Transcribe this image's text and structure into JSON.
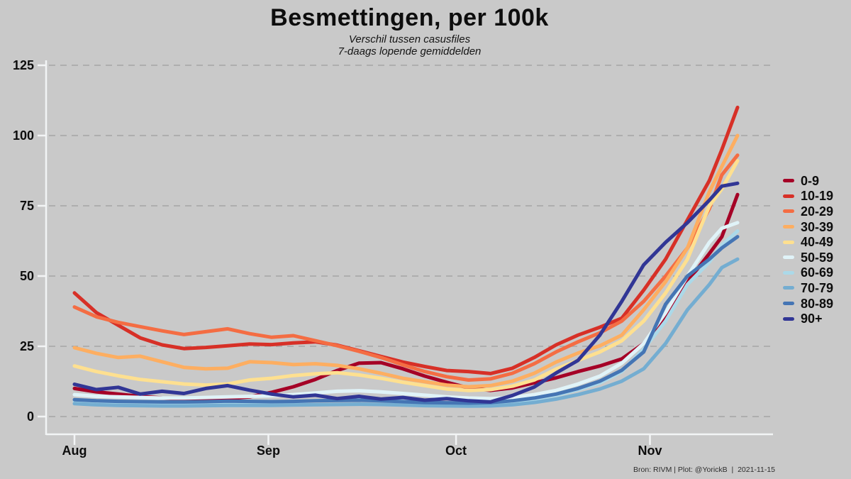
{
  "page": {
    "background": "#c9c9c9",
    "colors": {
      "grid": "#a6a6a6",
      "axis": "#f2f4f5",
      "text": "#0d0d0d"
    }
  },
  "chart_data": {
    "type": "line",
    "title": "Besmettingen, per 100k",
    "subtitle_line1": "Verschil tussen casusfiles",
    "subtitle_line2": "7-daags lopende gemiddelden",
    "caption": "Bron: RIVM | Plot: @YorickB  |  2021-11-15",
    "ylabel": "",
    "xlabel": "",
    "ylim": [
      0,
      125
    ],
    "y_ticks": [
      0,
      25,
      50,
      75,
      100,
      125
    ],
    "x_ticks": [
      {
        "day": 0,
        "label": "Aug"
      },
      {
        "day": 31,
        "label": "Sep"
      },
      {
        "day": 61,
        "label": "Oct"
      },
      {
        "day": 92,
        "label": "Nov"
      }
    ],
    "x_range_days": [
      0,
      106
    ],
    "grid": "horizontal-dashed",
    "legend_position": "right",
    "sample_days": [
      0,
      3.5,
      7,
      10.5,
      14,
      17.5,
      21,
      24.5,
      28,
      31.5,
      35,
      38.5,
      42,
      45.5,
      49,
      52.5,
      56,
      59.5,
      63,
      66.5,
      70,
      73.5,
      77,
      80.5,
      84,
      87.5,
      91,
      94.5,
      98,
      101.5,
      103.5,
      106
    ],
    "series": [
      {
        "name": "0-9",
        "color": "#a50026",
        "values": [
          10,
          8.8,
          8,
          7.2,
          6.6,
          6.2,
          6.1,
          6.4,
          7,
          8.6,
          10.6,
          13.2,
          16.4,
          19,
          19.2,
          17,
          14.4,
          12.2,
          10.2,
          9.3,
          10.2,
          12,
          13.8,
          16,
          18,
          20.5,
          26,
          35,
          48,
          58,
          64,
          79
        ]
      },
      {
        "name": "10-19",
        "color": "#d73027",
        "values": [
          44,
          37,
          32.5,
          28,
          25.5,
          24.2,
          24.6,
          25.2,
          25.8,
          25.6,
          26.2,
          26.6,
          25.4,
          23.4,
          21.4,
          19.4,
          17.8,
          16.4,
          16,
          15.3,
          17.2,
          21,
          25.5,
          29,
          31.8,
          35,
          45,
          56,
          70,
          84,
          95,
          110
        ]
      },
      {
        "name": "20-29",
        "color": "#f46d43",
        "values": [
          39,
          35.5,
          33.5,
          32,
          30.5,
          29.2,
          30.2,
          31.2,
          29.5,
          28.2,
          28.8,
          27,
          25.2,
          23.2,
          21,
          18.4,
          16,
          14.2,
          13,
          13.4,
          15.4,
          18.8,
          23,
          26.6,
          29.8,
          34,
          41,
          50,
          60,
          74,
          86,
          93
        ]
      },
      {
        "name": "30-39",
        "color": "#fdae61",
        "values": [
          24.5,
          22.5,
          21,
          21.5,
          19.5,
          17.5,
          17,
          17.2,
          19.5,
          19.2,
          18.5,
          18.8,
          18.2,
          17,
          15.4,
          13.6,
          12.4,
          11.2,
          10.6,
          11,
          12.6,
          15.4,
          19.4,
          22.6,
          25.2,
          29,
          38,
          48,
          60,
          80,
          89,
          100
        ]
      },
      {
        "name": "40-49",
        "color": "#fee090",
        "values": [
          18,
          16,
          14.5,
          13.2,
          12.4,
          11.6,
          11.2,
          11.6,
          13,
          13.6,
          14.6,
          15.2,
          15.6,
          14.8,
          13.6,
          12.2,
          11,
          9.8,
          9.3,
          9.6,
          10.8,
          13,
          16.9,
          20,
          23,
          27,
          34,
          44,
          56,
          75,
          81,
          91
        ]
      },
      {
        "name": "50-59",
        "color": "#e0f3f8",
        "values": [
          7.8,
          7.2,
          7,
          6.8,
          6.6,
          6.6,
          6.8,
          7,
          7.2,
          7.4,
          7.8,
          8.4,
          9,
          9.2,
          8.8,
          8.2,
          7.6,
          7,
          6.6,
          6.4,
          6.8,
          7.8,
          9.3,
          11.6,
          14.4,
          19,
          26,
          37,
          50,
          62,
          67,
          69
        ]
      },
      {
        "name": "60-69",
        "color": "#abd9e9",
        "values": [
          5.4,
          5,
          4.8,
          4.6,
          4.5,
          4.5,
          4.6,
          4.7,
          4.8,
          5,
          5.2,
          5.6,
          5.8,
          6,
          5.8,
          5.4,
          5,
          4.8,
          4.6,
          4.6,
          5.2,
          6.2,
          7.6,
          9.6,
          12,
          16,
          24,
          34,
          47,
          55,
          61,
          66
        ]
      },
      {
        "name": "70-79",
        "color": "#74add1",
        "values": [
          4.6,
          4.2,
          4,
          3.9,
          3.8,
          3.8,
          3.9,
          4,
          4,
          4,
          4.1,
          4.2,
          4.3,
          4.4,
          4.3,
          4.1,
          3.9,
          3.8,
          3.7,
          3.8,
          4.2,
          5,
          6.2,
          7.8,
          9.8,
          12.6,
          17,
          26,
          38,
          47,
          53,
          56
        ]
      },
      {
        "name": "80-89",
        "color": "#4575b4",
        "values": [
          6,
          5.6,
          5.4,
          5.3,
          5.2,
          5.2,
          5.3,
          5.5,
          5.4,
          5.3,
          5.4,
          5.6,
          5.7,
          5.8,
          5.6,
          5.3,
          5,
          4.9,
          4.8,
          5,
          5.6,
          6.6,
          8,
          10,
          12.6,
          16.5,
          23,
          40,
          50,
          56,
          60,
          64
        ]
      },
      {
        "name": "90+",
        "color": "#313695",
        "values": [
          11.5,
          9.6,
          10.4,
          8,
          9,
          8.2,
          10,
          11,
          9.4,
          8,
          7,
          7.6,
          6.4,
          7.2,
          6.2,
          6.8,
          5.8,
          6.4,
          5.6,
          5.2,
          7.5,
          10.5,
          15.5,
          20,
          29,
          41,
          54,
          62,
          69,
          77,
          82,
          83
        ]
      }
    ]
  }
}
